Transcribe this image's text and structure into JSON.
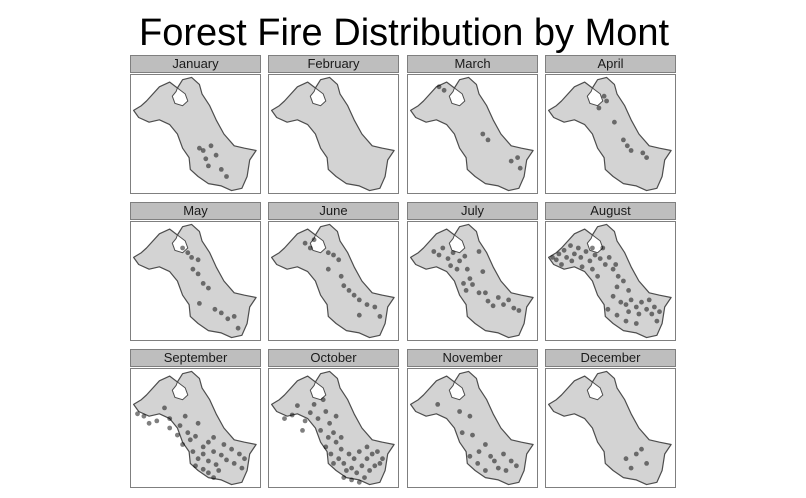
{
  "title": "Forest Fire Distribution by Mont",
  "panels": [
    {
      "month": "January",
      "fires": [
        [
          0.53,
          0.62
        ],
        [
          0.56,
          0.64
        ],
        [
          0.62,
          0.6
        ],
        [
          0.66,
          0.68
        ],
        [
          0.58,
          0.71
        ],
        [
          0.6,
          0.77
        ],
        [
          0.7,
          0.8
        ],
        [
          0.74,
          0.86
        ]
      ]
    },
    {
      "month": "February",
      "fires": []
    },
    {
      "month": "March",
      "fires": [
        [
          0.24,
          0.1
        ],
        [
          0.28,
          0.13
        ],
        [
          0.58,
          0.5
        ],
        [
          0.62,
          0.55
        ],
        [
          0.8,
          0.73
        ],
        [
          0.85,
          0.7
        ],
        [
          0.87,
          0.79
        ]
      ]
    },
    {
      "month": "April",
      "fires": [
        [
          0.45,
          0.18
        ],
        [
          0.47,
          0.22
        ],
        [
          0.41,
          0.28
        ],
        [
          0.53,
          0.4
        ],
        [
          0.6,
          0.55
        ],
        [
          0.63,
          0.6
        ],
        [
          0.66,
          0.64
        ],
        [
          0.75,
          0.66
        ],
        [
          0.78,
          0.7
        ]
      ]
    },
    {
      "month": "May",
      "fires": [
        [
          0.4,
          0.22
        ],
        [
          0.44,
          0.26
        ],
        [
          0.47,
          0.3
        ],
        [
          0.52,
          0.32
        ],
        [
          0.48,
          0.4
        ],
        [
          0.52,
          0.44
        ],
        [
          0.56,
          0.52
        ],
        [
          0.6,
          0.56
        ],
        [
          0.53,
          0.69
        ],
        [
          0.65,
          0.74
        ],
        [
          0.7,
          0.77
        ],
        [
          0.75,
          0.82
        ],
        [
          0.8,
          0.8
        ],
        [
          0.83,
          0.9
        ]
      ]
    },
    {
      "month": "June",
      "fires": [
        [
          0.28,
          0.18
        ],
        [
          0.32,
          0.22
        ],
        [
          0.35,
          0.15
        ],
        [
          0.46,
          0.26
        ],
        [
          0.5,
          0.28
        ],
        [
          0.54,
          0.32
        ],
        [
          0.46,
          0.4
        ],
        [
          0.56,
          0.46
        ],
        [
          0.58,
          0.54
        ],
        [
          0.62,
          0.58
        ],
        [
          0.66,
          0.62
        ],
        [
          0.7,
          0.66
        ],
        [
          0.76,
          0.7
        ],
        [
          0.7,
          0.79
        ],
        [
          0.82,
          0.72
        ],
        [
          0.86,
          0.8
        ]
      ]
    },
    {
      "month": "July",
      "fires": [
        [
          0.2,
          0.25
        ],
        [
          0.24,
          0.28
        ],
        [
          0.27,
          0.22
        ],
        [
          0.31,
          0.31
        ],
        [
          0.35,
          0.26
        ],
        [
          0.33,
          0.37
        ],
        [
          0.38,
          0.4
        ],
        [
          0.4,
          0.33
        ],
        [
          0.44,
          0.29
        ],
        [
          0.46,
          0.4
        ],
        [
          0.48,
          0.48
        ],
        [
          0.43,
          0.52
        ],
        [
          0.5,
          0.53
        ],
        [
          0.45,
          0.58
        ],
        [
          0.55,
          0.6
        ],
        [
          0.6,
          0.6
        ],
        [
          0.62,
          0.67
        ],
        [
          0.66,
          0.71
        ],
        [
          0.7,
          0.64
        ],
        [
          0.74,
          0.7
        ],
        [
          0.78,
          0.66
        ],
        [
          0.82,
          0.73
        ],
        [
          0.86,
          0.75
        ],
        [
          0.55,
          0.25
        ],
        [
          0.58,
          0.42
        ]
      ]
    },
    {
      "month": "August",
      "fires": [
        [
          0.05,
          0.3
        ],
        [
          0.08,
          0.32
        ],
        [
          0.1,
          0.27
        ],
        [
          0.14,
          0.24
        ],
        [
          0.16,
          0.3
        ],
        [
          0.19,
          0.2
        ],
        [
          0.2,
          0.33
        ],
        [
          0.22,
          0.27
        ],
        [
          0.25,
          0.22
        ],
        [
          0.27,
          0.3
        ],
        [
          0.28,
          0.38
        ],
        [
          0.31,
          0.25
        ],
        [
          0.34,
          0.33
        ],
        [
          0.36,
          0.22
        ],
        [
          0.38,
          0.28
        ],
        [
          0.42,
          0.31
        ],
        [
          0.44,
          0.22
        ],
        [
          0.46,
          0.36
        ],
        [
          0.49,
          0.3
        ],
        [
          0.52,
          0.4
        ],
        [
          0.54,
          0.36
        ],
        [
          0.56,
          0.46
        ],
        [
          0.6,
          0.5
        ],
        [
          0.55,
          0.55
        ],
        [
          0.52,
          0.63
        ],
        [
          0.58,
          0.68
        ],
        [
          0.62,
          0.7
        ],
        [
          0.64,
          0.76
        ],
        [
          0.66,
          0.66
        ],
        [
          0.7,
          0.72
        ],
        [
          0.72,
          0.78
        ],
        [
          0.74,
          0.68
        ],
        [
          0.78,
          0.74
        ],
        [
          0.8,
          0.66
        ],
        [
          0.82,
          0.78
        ],
        [
          0.84,
          0.72
        ],
        [
          0.86,
          0.84
        ],
        [
          0.7,
          0.86
        ],
        [
          0.62,
          0.84
        ],
        [
          0.55,
          0.79
        ],
        [
          0.48,
          0.74
        ],
        [
          0.88,
          0.76
        ],
        [
          0.64,
          0.58
        ],
        [
          0.36,
          0.4
        ],
        [
          0.12,
          0.36
        ],
        [
          0.4,
          0.46
        ]
      ]
    },
    {
      "month": "September",
      "fires": [
        [
          0.05,
          0.38
        ],
        [
          0.1,
          0.4
        ],
        [
          0.14,
          0.46
        ],
        [
          0.2,
          0.44
        ],
        [
          0.26,
          0.33
        ],
        [
          0.3,
          0.42
        ],
        [
          0.38,
          0.48
        ],
        [
          0.42,
          0.4
        ],
        [
          0.44,
          0.54
        ],
        [
          0.4,
          0.64
        ],
        [
          0.46,
          0.6
        ],
        [
          0.5,
          0.57
        ],
        [
          0.56,
          0.66
        ],
        [
          0.6,
          0.62
        ],
        [
          0.64,
          0.58
        ],
        [
          0.48,
          0.7
        ],
        [
          0.52,
          0.76
        ],
        [
          0.56,
          0.72
        ],
        [
          0.6,
          0.78
        ],
        [
          0.64,
          0.7
        ],
        [
          0.66,
          0.81
        ],
        [
          0.7,
          0.73
        ],
        [
          0.72,
          0.64
        ],
        [
          0.74,
          0.77
        ],
        [
          0.78,
          0.68
        ],
        [
          0.8,
          0.8
        ],
        [
          0.84,
          0.72
        ],
        [
          0.86,
          0.84
        ],
        [
          0.88,
          0.76
        ],
        [
          0.6,
          0.88
        ],
        [
          0.64,
          0.92
        ],
        [
          0.5,
          0.82
        ],
        [
          0.56,
          0.85
        ],
        [
          0.36,
          0.56
        ],
        [
          0.3,
          0.5
        ],
        [
          0.52,
          0.46
        ],
        [
          0.68,
          0.86
        ]
      ]
    },
    {
      "month": "October",
      "fires": [
        [
          0.12,
          0.42
        ],
        [
          0.18,
          0.39
        ],
        [
          0.22,
          0.31
        ],
        [
          0.28,
          0.44
        ],
        [
          0.32,
          0.37
        ],
        [
          0.38,
          0.42
        ],
        [
          0.42,
          0.26
        ],
        [
          0.44,
          0.36
        ],
        [
          0.47,
          0.46
        ],
        [
          0.4,
          0.52
        ],
        [
          0.46,
          0.58
        ],
        [
          0.5,
          0.54
        ],
        [
          0.52,
          0.62
        ],
        [
          0.56,
          0.68
        ],
        [
          0.48,
          0.72
        ],
        [
          0.5,
          0.8
        ],
        [
          0.54,
          0.76
        ],
        [
          0.58,
          0.8
        ],
        [
          0.6,
          0.86
        ],
        [
          0.62,
          0.72
        ],
        [
          0.64,
          0.84
        ],
        [
          0.66,
          0.76
        ],
        [
          0.68,
          0.88
        ],
        [
          0.7,
          0.7
        ],
        [
          0.72,
          0.82
        ],
        [
          0.74,
          0.92
        ],
        [
          0.76,
          0.76
        ],
        [
          0.78,
          0.86
        ],
        [
          0.8,
          0.72
        ],
        [
          0.82,
          0.82
        ],
        [
          0.84,
          0.7
        ],
        [
          0.86,
          0.8
        ],
        [
          0.88,
          0.76
        ],
        [
          0.76,
          0.66
        ],
        [
          0.58,
          0.92
        ],
        [
          0.64,
          0.94
        ],
        [
          0.7,
          0.96
        ],
        [
          0.44,
          0.66
        ],
        [
          0.52,
          0.4
        ],
        [
          0.35,
          0.3
        ],
        [
          0.26,
          0.52
        ],
        [
          0.56,
          0.58
        ]
      ]
    },
    {
      "month": "November",
      "fires": [
        [
          0.23,
          0.3
        ],
        [
          0.4,
          0.36
        ],
        [
          0.42,
          0.54
        ],
        [
          0.48,
          0.4
        ],
        [
          0.5,
          0.56
        ],
        [
          0.55,
          0.7
        ],
        [
          0.6,
          0.64
        ],
        [
          0.64,
          0.74
        ],
        [
          0.67,
          0.78
        ],
        [
          0.7,
          0.84
        ],
        [
          0.74,
          0.72
        ],
        [
          0.76,
          0.86
        ],
        [
          0.8,
          0.78
        ],
        [
          0.84,
          0.82
        ],
        [
          0.6,
          0.86
        ],
        [
          0.54,
          0.8
        ],
        [
          0.48,
          0.74
        ]
      ]
    },
    {
      "month": "December",
      "fires": [
        [
          0.7,
          0.72
        ],
        [
          0.74,
          0.68
        ],
        [
          0.78,
          0.8
        ],
        [
          0.62,
          0.76
        ],
        [
          0.66,
          0.84
        ]
      ]
    }
  ]
}
